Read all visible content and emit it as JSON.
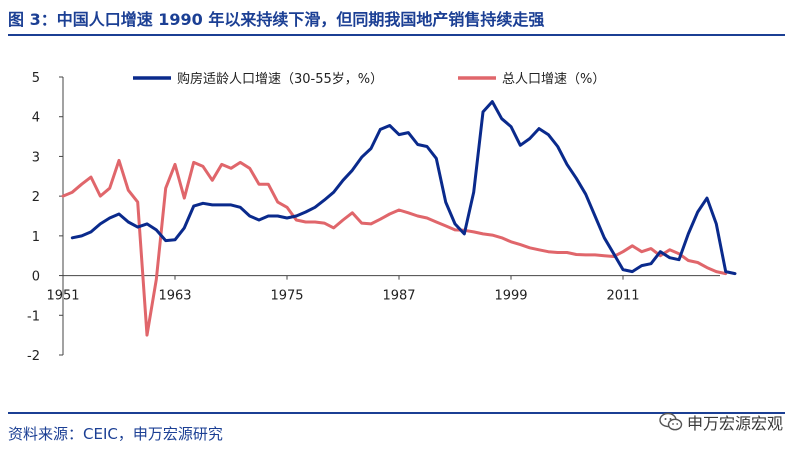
{
  "title": "图 3：中国人口增速 1990 年以来持续下滑，但同期我国地产销售持续走强",
  "source": "资料来源：CEIC，申万宏源研究",
  "watermark": "申万宏源宏观",
  "colors": {
    "brand": "#1b3f94",
    "series_working_age": "#0a2a8c",
    "series_total": "#e0666b"
  },
  "chart_data": {
    "type": "line",
    "xlabel": "",
    "ylabel": "",
    "xlim": [
      1951,
      2021
    ],
    "ylim": [
      -2,
      5
    ],
    "x_ticks": [
      1951,
      1963,
      1975,
      1987,
      1999,
      2011
    ],
    "y_ticks": [
      -2,
      -1,
      0,
      1,
      2,
      3,
      4,
      5
    ],
    "grid": false,
    "legend_position": "top",
    "series": [
      {
        "name": "购房适龄人口增速（30-55岁，%）",
        "color": "#0a2a8c",
        "points": [
          [
            1952,
            0.95
          ],
          [
            1953,
            1.0
          ],
          [
            1954,
            1.1
          ],
          [
            1955,
            1.3
          ],
          [
            1956,
            1.45
          ],
          [
            1957,
            1.55
          ],
          [
            1958,
            1.35
          ],
          [
            1959,
            1.22
          ],
          [
            1960,
            1.3
          ],
          [
            1961,
            1.15
          ],
          [
            1962,
            0.88
          ],
          [
            1963,
            0.9
          ],
          [
            1964,
            1.2
          ],
          [
            1965,
            1.75
          ],
          [
            1966,
            1.82
          ],
          [
            1967,
            1.78
          ],
          [
            1968,
            1.78
          ],
          [
            1969,
            1.78
          ],
          [
            1970,
            1.72
          ],
          [
            1971,
            1.5
          ],
          [
            1972,
            1.4
          ],
          [
            1973,
            1.5
          ],
          [
            1974,
            1.5
          ],
          [
            1975,
            1.45
          ],
          [
            1976,
            1.5
          ],
          [
            1977,
            1.6
          ],
          [
            1978,
            1.72
          ],
          [
            1979,
            1.9
          ],
          [
            1980,
            2.1
          ],
          [
            1981,
            2.4
          ],
          [
            1982,
            2.65
          ],
          [
            1983,
            2.98
          ],
          [
            1984,
            3.2
          ],
          [
            1985,
            3.68
          ],
          [
            1986,
            3.78
          ],
          [
            1987,
            3.55
          ],
          [
            1988,
            3.6
          ],
          [
            1989,
            3.3
          ],
          [
            1990,
            3.25
          ],
          [
            1991,
            2.95
          ],
          [
            1992,
            1.85
          ],
          [
            1993,
            1.3
          ],
          [
            1994,
            1.05
          ],
          [
            1995,
            2.1
          ],
          [
            1996,
            4.12
          ],
          [
            1997,
            4.38
          ],
          [
            1998,
            3.95
          ],
          [
            1999,
            3.75
          ],
          [
            2000,
            3.28
          ],
          [
            2001,
            3.45
          ],
          [
            2002,
            3.7
          ],
          [
            2003,
            3.55
          ],
          [
            2004,
            3.25
          ],
          [
            2005,
            2.8
          ],
          [
            2006,
            2.45
          ],
          [
            2007,
            2.05
          ],
          [
            2008,
            1.5
          ],
          [
            2009,
            0.95
          ],
          [
            2010,
            0.55
          ],
          [
            2011,
            0.15
          ],
          [
            2012,
            0.1
          ],
          [
            2013,
            0.25
          ],
          [
            2014,
            0.3
          ],
          [
            2015,
            0.6
          ],
          [
            2016,
            0.45
          ],
          [
            2017,
            0.4
          ],
          [
            2018,
            1.05
          ],
          [
            2019,
            1.6
          ],
          [
            2020,
            1.95
          ],
          [
            2021,
            1.3
          ],
          [
            2022,
            0.1
          ],
          [
            2023,
            0.05
          ]
        ]
      },
      {
        "name": "总人口增速（%）",
        "color": "#e0666b",
        "points": [
          [
            1951,
            2.0
          ],
          [
            1952,
            2.1
          ],
          [
            1953,
            2.3
          ],
          [
            1954,
            2.48
          ],
          [
            1955,
            2.0
          ],
          [
            1956,
            2.2
          ],
          [
            1957,
            2.9
          ],
          [
            1958,
            2.15
          ],
          [
            1959,
            1.85
          ],
          [
            1960,
            -1.5
          ],
          [
            1961,
            -0.1
          ],
          [
            1962,
            2.2
          ],
          [
            1963,
            2.8
          ],
          [
            1964,
            1.95
          ],
          [
            1965,
            2.85
          ],
          [
            1966,
            2.75
          ],
          [
            1967,
            2.4
          ],
          [
            1968,
            2.8
          ],
          [
            1969,
            2.7
          ],
          [
            1970,
            2.85
          ],
          [
            1971,
            2.7
          ],
          [
            1972,
            2.3
          ],
          [
            1973,
            2.3
          ],
          [
            1974,
            1.85
          ],
          [
            1975,
            1.72
          ],
          [
            1976,
            1.4
          ],
          [
            1977,
            1.35
          ],
          [
            1978,
            1.35
          ],
          [
            1979,
            1.32
          ],
          [
            1980,
            1.2
          ],
          [
            1981,
            1.4
          ],
          [
            1982,
            1.58
          ],
          [
            1983,
            1.32
          ],
          [
            1984,
            1.3
          ],
          [
            1985,
            1.42
          ],
          [
            1986,
            1.55
          ],
          [
            1987,
            1.65
          ],
          [
            1988,
            1.58
          ],
          [
            1989,
            1.5
          ],
          [
            1990,
            1.45
          ],
          [
            1991,
            1.35
          ],
          [
            1992,
            1.25
          ],
          [
            1993,
            1.15
          ],
          [
            1994,
            1.14
          ],
          [
            1995,
            1.1
          ],
          [
            1996,
            1.05
          ],
          [
            1997,
            1.02
          ],
          [
            1998,
            0.95
          ],
          [
            1999,
            0.85
          ],
          [
            2000,
            0.78
          ],
          [
            2001,
            0.7
          ],
          [
            2002,
            0.65
          ],
          [
            2003,
            0.6
          ],
          [
            2004,
            0.58
          ],
          [
            2005,
            0.58
          ],
          [
            2006,
            0.53
          ],
          [
            2007,
            0.52
          ],
          [
            2008,
            0.52
          ],
          [
            2009,
            0.5
          ],
          [
            2010,
            0.48
          ],
          [
            2011,
            0.6
          ],
          [
            2012,
            0.75
          ],
          [
            2013,
            0.6
          ],
          [
            2014,
            0.68
          ],
          [
            2015,
            0.5
          ],
          [
            2016,
            0.65
          ],
          [
            2017,
            0.55
          ],
          [
            2018,
            0.38
          ],
          [
            2019,
            0.33
          ],
          [
            2020,
            0.2
          ],
          [
            2021,
            0.1
          ],
          [
            2022,
            0.05
          ]
        ]
      }
    ]
  }
}
